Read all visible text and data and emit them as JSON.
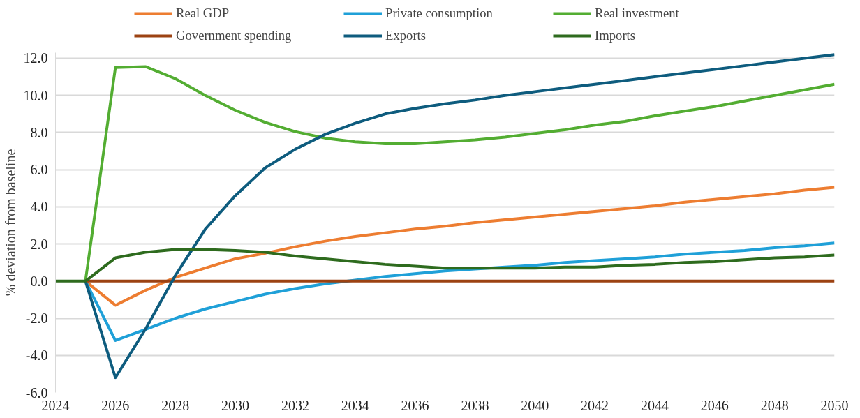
{
  "chart_data": {
    "type": "line",
    "ylabel": "% deviation from baseline",
    "x": [
      2024,
      2025,
      2026,
      2027,
      2028,
      2029,
      2030,
      2031,
      2032,
      2033,
      2034,
      2035,
      2036,
      2037,
      2038,
      2039,
      2040,
      2041,
      2042,
      2043,
      2044,
      2045,
      2046,
      2047,
      2048,
      2049,
      2050
    ],
    "series": [
      {
        "name": "Real GDP",
        "color": "#ed7d31",
        "values": [
          null,
          0,
          -1.3,
          -0.5,
          0.2,
          0.7,
          1.2,
          1.5,
          1.85,
          2.15,
          2.4,
          2.6,
          2.8,
          2.95,
          3.15,
          3.3,
          3.45,
          3.6,
          3.75,
          3.9,
          4.05,
          4.25,
          4.4,
          4.55,
          4.7,
          4.9,
          5.05
        ]
      },
      {
        "name": "Private consumption",
        "color": "#1fa0d8",
        "values": [
          null,
          0,
          -3.2,
          -2.6,
          -2.0,
          -1.5,
          -1.1,
          -0.7,
          -0.4,
          -0.15,
          0.05,
          0.25,
          0.4,
          0.55,
          0.65,
          0.75,
          0.85,
          1.0,
          1.1,
          1.2,
          1.3,
          1.45,
          1.55,
          1.65,
          1.8,
          1.9,
          2.05
        ]
      },
      {
        "name": "Real investment",
        "color": "#53ad32",
        "values": [
          null,
          0,
          11.5,
          11.55,
          10.9,
          10.0,
          9.2,
          8.55,
          8.05,
          7.7,
          7.5,
          7.4,
          7.4,
          7.5,
          7.6,
          7.75,
          7.95,
          8.15,
          8.4,
          8.6,
          8.9,
          9.15,
          9.4,
          9.7,
          10.0,
          10.3,
          10.6
        ]
      },
      {
        "name": "Government spending",
        "color": "#9c4212",
        "values": [
          null,
          0,
          0,
          0,
          0,
          0,
          0,
          0,
          0,
          0,
          0,
          0,
          0,
          0,
          0,
          0,
          0,
          0,
          0,
          0,
          0,
          0,
          0,
          0,
          0,
          0,
          0
        ]
      },
      {
        "name": "Exports",
        "color": "#0e5c7e",
        "values": [
          null,
          0,
          -5.2,
          -2.6,
          0.3,
          2.8,
          4.6,
          6.1,
          7.1,
          7.9,
          8.5,
          9.0,
          9.3,
          9.55,
          9.75,
          10.0,
          10.2,
          10.4,
          10.6,
          10.8,
          11.0,
          11.2,
          11.4,
          11.6,
          11.8,
          12.0,
          12.2
        ]
      },
      {
        "name": "Imports",
        "color": "#2e6b1e",
        "values": [
          0,
          0,
          1.25,
          1.55,
          1.7,
          1.7,
          1.65,
          1.55,
          1.35,
          1.2,
          1.05,
          0.9,
          0.8,
          0.7,
          0.7,
          0.7,
          0.7,
          0.75,
          0.75,
          0.85,
          0.9,
          1.0,
          1.05,
          1.15,
          1.25,
          1.3,
          1.4
        ]
      }
    ],
    "xlim": [
      2024,
      2050
    ],
    "xticks": [
      2024,
      2026,
      2028,
      2030,
      2032,
      2034,
      2036,
      2038,
      2040,
      2042,
      2044,
      2046,
      2048,
      2050
    ],
    "ylim": [
      -6,
      12.3
    ],
    "yticks": [
      {
        "value": -6,
        "label": "-6.0"
      },
      {
        "value": -4,
        "label": "-4.0"
      },
      {
        "value": -2,
        "label": "-2.0"
      },
      {
        "value": 0,
        "label": "0.0"
      },
      {
        "value": 2,
        "label": "2.0"
      },
      {
        "value": 4,
        "label": "4.0"
      },
      {
        "value": 6,
        "label": "6.0"
      },
      {
        "value": 8,
        "label": "8.0"
      },
      {
        "value": 10,
        "label": "10.0"
      },
      {
        "value": 12,
        "label": "12.0"
      }
    ],
    "grid": "y",
    "legend": "top",
    "line_style": "solid",
    "marker": "none"
  }
}
